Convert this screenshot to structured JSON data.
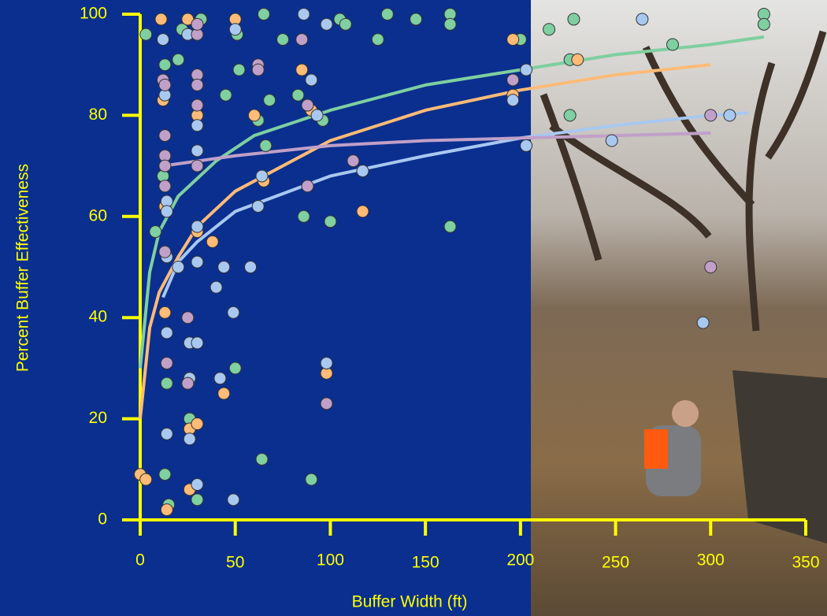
{
  "chart_data": {
    "type": "scatter",
    "x_label": "Buffer Width (ft)",
    "y_label": "Percent Buffer Effectiveness",
    "xlim": [
      0,
      350
    ],
    "xticks": [
      0,
      50,
      100,
      150,
      200,
      250,
      300,
      350
    ],
    "ylim": [
      0,
      100
    ],
    "yticks": [
      0,
      20,
      40,
      60,
      80,
      100
    ],
    "axis_color": "#ffff00",
    "series": [
      {
        "mode": "markers",
        "color": "#7fcfa0",
        "x": [
          3,
          8,
          12,
          13,
          14,
          13,
          15,
          20,
          22,
          26,
          30,
          30,
          32,
          45,
          50,
          51,
          52,
          62,
          64,
          65,
          66,
          68,
          75,
          83,
          86,
          90,
          96,
          100,
          105,
          108,
          125,
          130,
          145,
          163,
          163,
          163,
          200,
          215,
          228,
          280,
          328,
          328,
          226,
          226
        ],
        "values": [
          96,
          57,
          68,
          90,
          27,
          9,
          3,
          91,
          97,
          20,
          4,
          96,
          99,
          84,
          30,
          96,
          89,
          79,
          12,
          100,
          74,
          83,
          95,
          84,
          60,
          8,
          79,
          59,
          99,
          98,
          95,
          100,
          99,
          58,
          100,
          98,
          95,
          97,
          99,
          94,
          100,
          98,
          80,
          91
        ]
      },
      {
        "mode": "markers",
        "color": "#ffbb77",
        "x": [
          0,
          3,
          11,
          12,
          13,
          13,
          14,
          25,
          26,
          26,
          30,
          30,
          30,
          38,
          50,
          44,
          60,
          65,
          85,
          90,
          98,
          117,
          196,
          196,
          230
        ],
        "values": [
          9,
          8,
          99,
          83,
          62,
          41,
          2,
          99,
          18,
          6,
          19,
          57,
          80,
          55,
          99,
          25,
          80,
          67,
          89,
          81,
          29,
          61,
          84,
          95,
          91
        ]
      },
      {
        "mode": "markers",
        "color": "#a8c8f0",
        "x": [
          12,
          13,
          14,
          14,
          14,
          14,
          14,
          20,
          25,
          26,
          26,
          26,
          30,
          30,
          30,
          30,
          30,
          30,
          40,
          42,
          44,
          49,
          49,
          50,
          58,
          62,
          62,
          64,
          86,
          90,
          93,
          98,
          98,
          117,
          196,
          203,
          203,
          248,
          264,
          310,
          296
        ],
        "values": [
          95,
          84,
          63,
          61,
          52,
          37,
          17,
          50,
          96,
          28,
          16,
          35,
          35,
          78,
          73,
          58,
          51,
          7,
          46,
          28,
          50,
          41,
          4,
          97,
          50,
          89,
          62,
          68,
          100,
          87,
          80,
          98,
          31,
          69,
          83,
          74,
          89,
          75,
          99,
          80,
          39
        ]
      },
      {
        "mode": "markers",
        "color": "#c0a0c8",
        "x": [
          12,
          13,
          13,
          13,
          13,
          13,
          13,
          14,
          25,
          25,
          30,
          30,
          30,
          30,
          30,
          30,
          62,
          62,
          85,
          88,
          88,
          98,
          112,
          196,
          300,
          300
        ],
        "values": [
          87,
          86,
          76,
          72,
          70,
          66,
          53,
          31,
          40,
          27,
          96,
          88,
          86,
          82,
          70,
          98,
          90,
          89,
          95,
          82,
          66,
          23,
          71,
          87,
          80,
          50
        ]
      },
      {
        "mode": "line",
        "color": "#7fcfa0",
        "x": [
          0,
          5,
          10,
          20,
          40,
          60,
          100,
          150,
          200,
          250,
          300,
          328
        ],
        "values": [
          30,
          49,
          57,
          64,
          71,
          76,
          81,
          86,
          89,
          92,
          94,
          95.5
        ]
      },
      {
        "mode": "line",
        "color": "#ffbb77",
        "x": [
          0,
          5,
          10,
          20,
          30,
          50,
          100,
          150,
          200,
          250,
          300
        ],
        "values": [
          20,
          38,
          45,
          52,
          58,
          65,
          75,
          81,
          85,
          88,
          90
        ]
      },
      {
        "mode": "line",
        "color": "#a8c8f0",
        "x": [
          12,
          20,
          30,
          50,
          100,
          150,
          200,
          250,
          300,
          320
        ],
        "values": [
          44,
          51,
          55,
          61,
          68,
          72,
          75.5,
          78,
          80,
          80.5
        ]
      },
      {
        "mode": "line",
        "color": "#c0a0c8",
        "x": [
          12,
          50,
          100,
          150,
          200,
          250,
          300
        ],
        "values": [
          70,
          72,
          74,
          75,
          75.5,
          76,
          76.5
        ]
      }
    ]
  }
}
